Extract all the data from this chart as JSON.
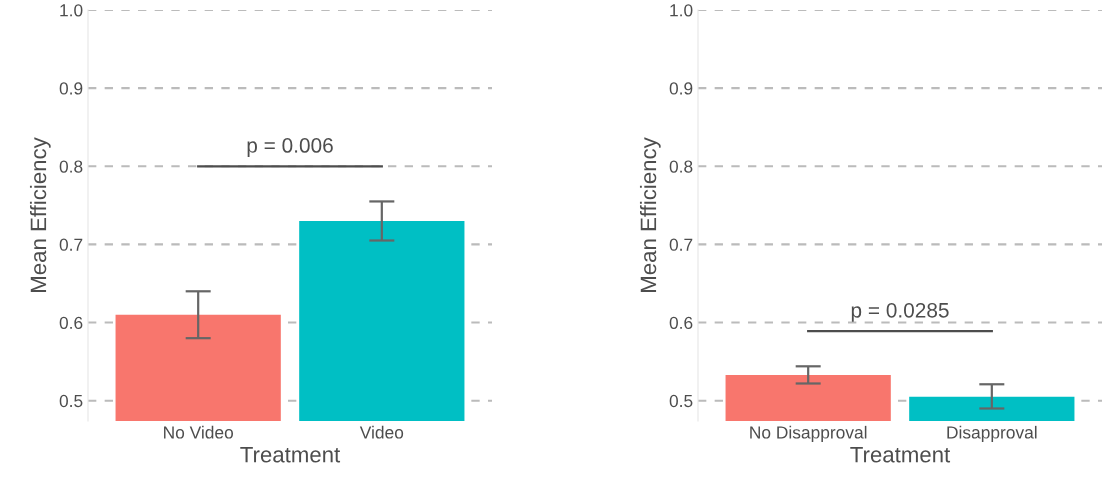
{
  "chart_data": [
    {
      "type": "bar",
      "xlabel": "Treatment",
      "ylabel": "Mean Efficiency",
      "categories": [
        "No Video",
        "Video"
      ],
      "values": [
        0.61,
        0.73
      ],
      "colors": [
        "#f8766d",
        "#00bfc4"
      ],
      "errors": [
        [
          0.58,
          0.64
        ],
        [
          0.705,
          0.755
        ]
      ],
      "ylim": [
        0.474,
        1.0
      ],
      "yticks": [
        0.5,
        0.6,
        0.7,
        0.8,
        0.9,
        {
          "value": 1.0,
          "label": "1.0"
        }
      ],
      "grid": "y",
      "annotations": [
        "p = 0.006"
      ]
    },
    {
      "type": "bar",
      "xlabel": "Treatment",
      "ylabel": "Mean Efficiency",
      "categories": [
        "No Disapproval",
        "Disapproval"
      ],
      "values": [
        0.533,
        0.505
      ],
      "colors": [
        "#f8766d",
        "#00bfc4"
      ],
      "errors": [
        [
          0.522,
          0.544
        ],
        [
          0.49,
          0.521
        ]
      ],
      "ylim": [
        0.474,
        1.0
      ],
      "yticks": [
        0.5,
        0.6,
        0.7,
        0.8,
        0.9,
        {
          "value": 1.0,
          "label": "1.0"
        }
      ],
      "grid": "y",
      "annotations": [
        "p = 0.0285"
      ]
    }
  ]
}
